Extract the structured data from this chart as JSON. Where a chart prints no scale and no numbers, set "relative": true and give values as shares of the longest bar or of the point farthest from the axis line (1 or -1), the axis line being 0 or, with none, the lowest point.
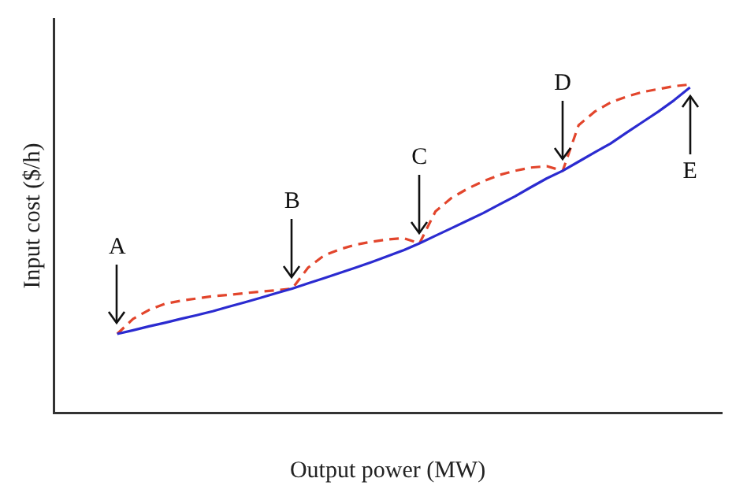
{
  "chart_data": {
    "type": "line",
    "relative": true,
    "xlabel": "Output power (MW)",
    "ylabel": "Input cost ($/h)",
    "legend": false,
    "grid": false,
    "marker": "none",
    "categories": [
      null,
      null,
      null,
      null,
      null,
      null,
      null,
      null,
      null,
      null,
      null,
      null,
      null,
      null,
      null,
      null,
      null,
      null,
      null,
      null,
      null,
      null,
      null,
      null,
      null,
      null,
      null,
      null,
      null,
      null,
      null,
      null,
      null,
      null,
      null,
      null,
      null,
      null,
      null,
      null,
      null,
      null,
      null
    ],
    "series": [
      {
        "color": "#2b2bd0",
        "line_style": "solid",
        "values": [
          null,
          null,
          null,
          null,
          0.24,
          0.251,
          0.263,
          0.274,
          0.286,
          0.297,
          0.309,
          0.323,
          0.336,
          0.35,
          0.364,
          0.378,
          0.394,
          0.41,
          0.426,
          0.442,
          0.459,
          0.477,
          0.495,
          0.516,
          0.539,
          0.562,
          0.585,
          0.608,
          0.634,
          0.659,
          0.687,
          0.714,
          0.737,
          0.765,
          0.793,
          0.82,
          0.853,
          0.885,
          0.917,
          0.952,
          0.991,
          null,
          null
        ]
      },
      {
        "color": "#e2452c",
        "line_style": "dashed",
        "values": [
          null,
          null,
          null,
          null,
          0.24,
          0.286,
          0.313,
          0.332,
          0.341,
          0.348,
          0.355,
          0.359,
          0.364,
          0.369,
          0.373,
          0.378,
          0.442,
          0.479,
          0.498,
          0.512,
          0.521,
          0.528,
          0.532,
          0.516,
          0.613,
          0.654,
          0.682,
          0.705,
          0.724,
          0.737,
          0.747,
          0.751,
          0.737,
          0.876,
          0.917,
          0.945,
          0.963,
          0.977,
          0.986,
          0.995,
          1,
          null,
          null
        ]
      }
    ],
    "annotations": [
      "A",
      "B",
      "C",
      "D",
      "E"
    ]
  }
}
